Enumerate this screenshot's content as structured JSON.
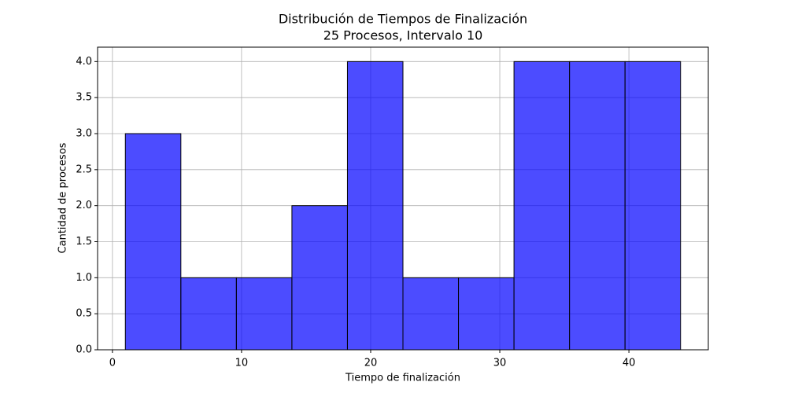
{
  "chart_data": {
    "type": "histogram",
    "title": "Distribución de Tiempos de Finalización",
    "subtitle": "25 Procesos, Intervalo 10",
    "x_label": "Tiempo de finalización",
    "y_label": "Cantidad de procesos",
    "bins": [
      1,
      5.3,
      9.6,
      13.9,
      18.2,
      22.5,
      26.8,
      31.1,
      35.4,
      39.7,
      44
    ],
    "values": [
      3,
      1,
      1,
      2,
      4,
      1,
      1,
      4,
      4,
      4
    ],
    "color": "#0000ff",
    "xlim": [
      -1.15,
      46.15
    ],
    "xticks": [
      0,
      10,
      20,
      30,
      40
    ],
    "ylim": [
      0,
      4.2
    ],
    "yticks": [
      {
        "value": 0,
        "label": "0.0"
      },
      {
        "value": 0.5,
        "label": "0.5"
      },
      {
        "value": 1,
        "label": "1.0"
      },
      {
        "value": 1.5,
        "label": "1.5"
      },
      {
        "value": 2,
        "label": "2.0"
      },
      {
        "value": 2.5,
        "label": "2.5"
      },
      {
        "value": 3,
        "label": "3.0"
      },
      {
        "value": 3.5,
        "label": "3.5"
      },
      {
        "value": 4,
        "label": "4.0"
      }
    ],
    "grid": true
  }
}
